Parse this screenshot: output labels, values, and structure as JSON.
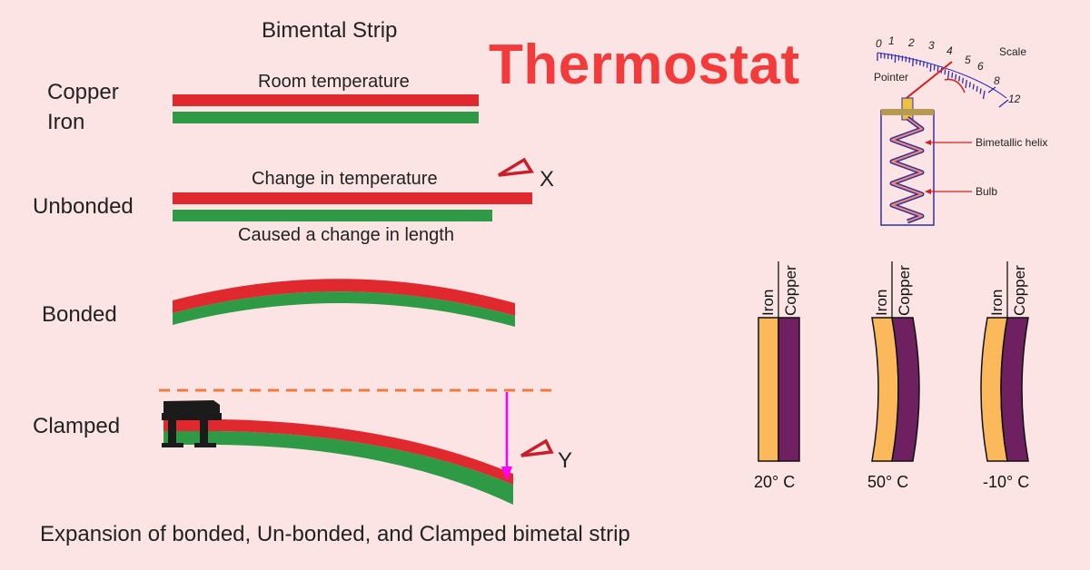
{
  "heading": "Thermostat",
  "left_panel": {
    "title": "Bimental Strip",
    "labels": {
      "copper": "Copper",
      "iron": "Iron",
      "unbonded": "Unbonded",
      "bonded": "Bonded",
      "clamped": "Clamped"
    },
    "captions": {
      "room_temperature": "Room temperature",
      "change_in_temperature": "Change in temperature",
      "change_in_length": "Caused a change in length"
    },
    "delta_x": "X",
    "delta_y": "Y",
    "footer": "Expansion of bonded, Un-bonded, and Clamped bimetal strip"
  },
  "gauge": {
    "scale_label": "Scale",
    "pointer_label": "Pointer",
    "helix_label": "Bimetallic helix",
    "bulb_label": "Bulb",
    "ticks": [
      "0",
      "1",
      "2",
      "3",
      "4",
      "5",
      "6",
      "8",
      "12"
    ]
  },
  "strips": [
    {
      "metal_a": "Iron",
      "metal_b": "Copper",
      "temperature": "20° C"
    },
    {
      "metal_a": "Iron",
      "metal_b": "Copper",
      "temperature": "50° C"
    },
    {
      "metal_a": "Iron",
      "metal_b": "Copper",
      "temperature": "-10° C"
    }
  ],
  "colors": {
    "background": "#fce4e4",
    "title": "#f43b3b",
    "copper_strip": "#e0292f",
    "iron_strip": "#2f9a45",
    "iron_fill": "#fbb95c",
    "copper_fill": "#6e2060",
    "arrow": "#ff00ff",
    "dashed": "#f07a3c"
  }
}
